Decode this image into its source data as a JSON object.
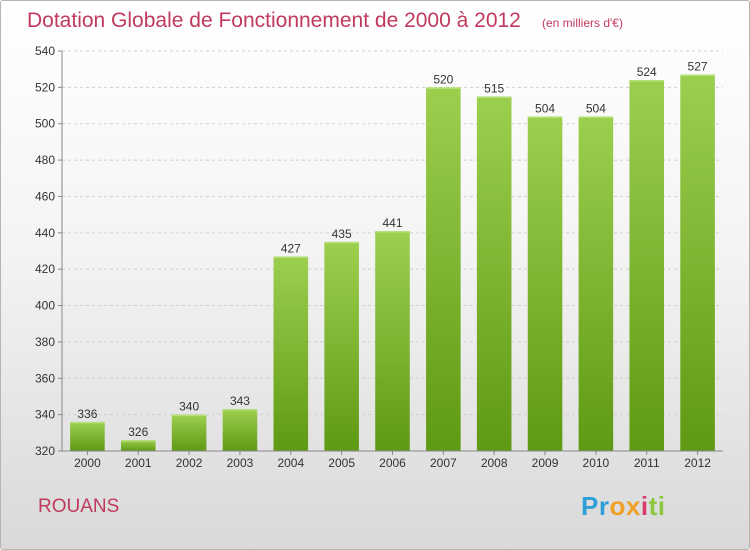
{
  "chart_data": {
    "type": "bar",
    "title": "Dotation Globale de Fonctionnement de 2000 à 2012",
    "subtitle": "(en milliers d'€)",
    "categories": [
      "2000",
      "2001",
      "2002",
      "2003",
      "2004",
      "2005",
      "2006",
      "2007",
      "2008",
      "2009",
      "2010",
      "2011",
      "2012"
    ],
    "values": [
      336,
      326,
      340,
      343,
      427,
      435,
      441,
      520,
      515,
      504,
      504,
      524,
      527
    ],
    "ylim": [
      320,
      540
    ],
    "yticks": [
      320,
      340,
      360,
      380,
      400,
      420,
      440,
      460,
      480,
      500,
      520,
      540
    ],
    "grid": true,
    "bar_color": "#8dc63f"
  },
  "footer": {
    "commune": "ROUANS",
    "logo_letters": [
      "P",
      "r",
      "o",
      "x",
      "i",
      "t",
      "i"
    ],
    "logo_colors": [
      "#2f9fd8",
      "#2f9fd8",
      "#f0a028",
      "#f0a028",
      "#d83a6a",
      "#8dc63f",
      "#8dc63f"
    ]
  }
}
